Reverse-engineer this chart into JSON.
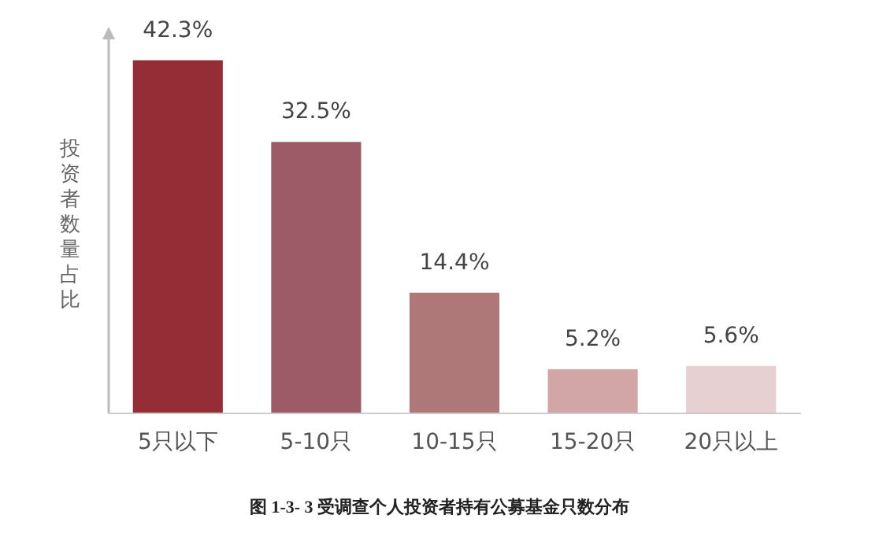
{
  "chart_data": {
    "type": "bar",
    "title": "图 1-3- 3 受调查个人投资者持有公募基金只数分布",
    "ylabel": "投资者数量占比",
    "categories": [
      "5只以下",
      "5-10只",
      "10-15只",
      "15-20只",
      "20只以上"
    ],
    "values": [
      42.3,
      32.5,
      14.4,
      5.2,
      5.6
    ],
    "colors": [
      "#952d37",
      "#9c5b67",
      "#ad7877",
      "#d2a6a6",
      "#e6d0d1"
    ],
    "value_labels": [
      "42.3%",
      "32.5%",
      "14.4%",
      "5.2%",
      "5.6%"
    ],
    "ylim": [
      0,
      45
    ],
    "tick_labels": "x",
    "grid": false
  }
}
